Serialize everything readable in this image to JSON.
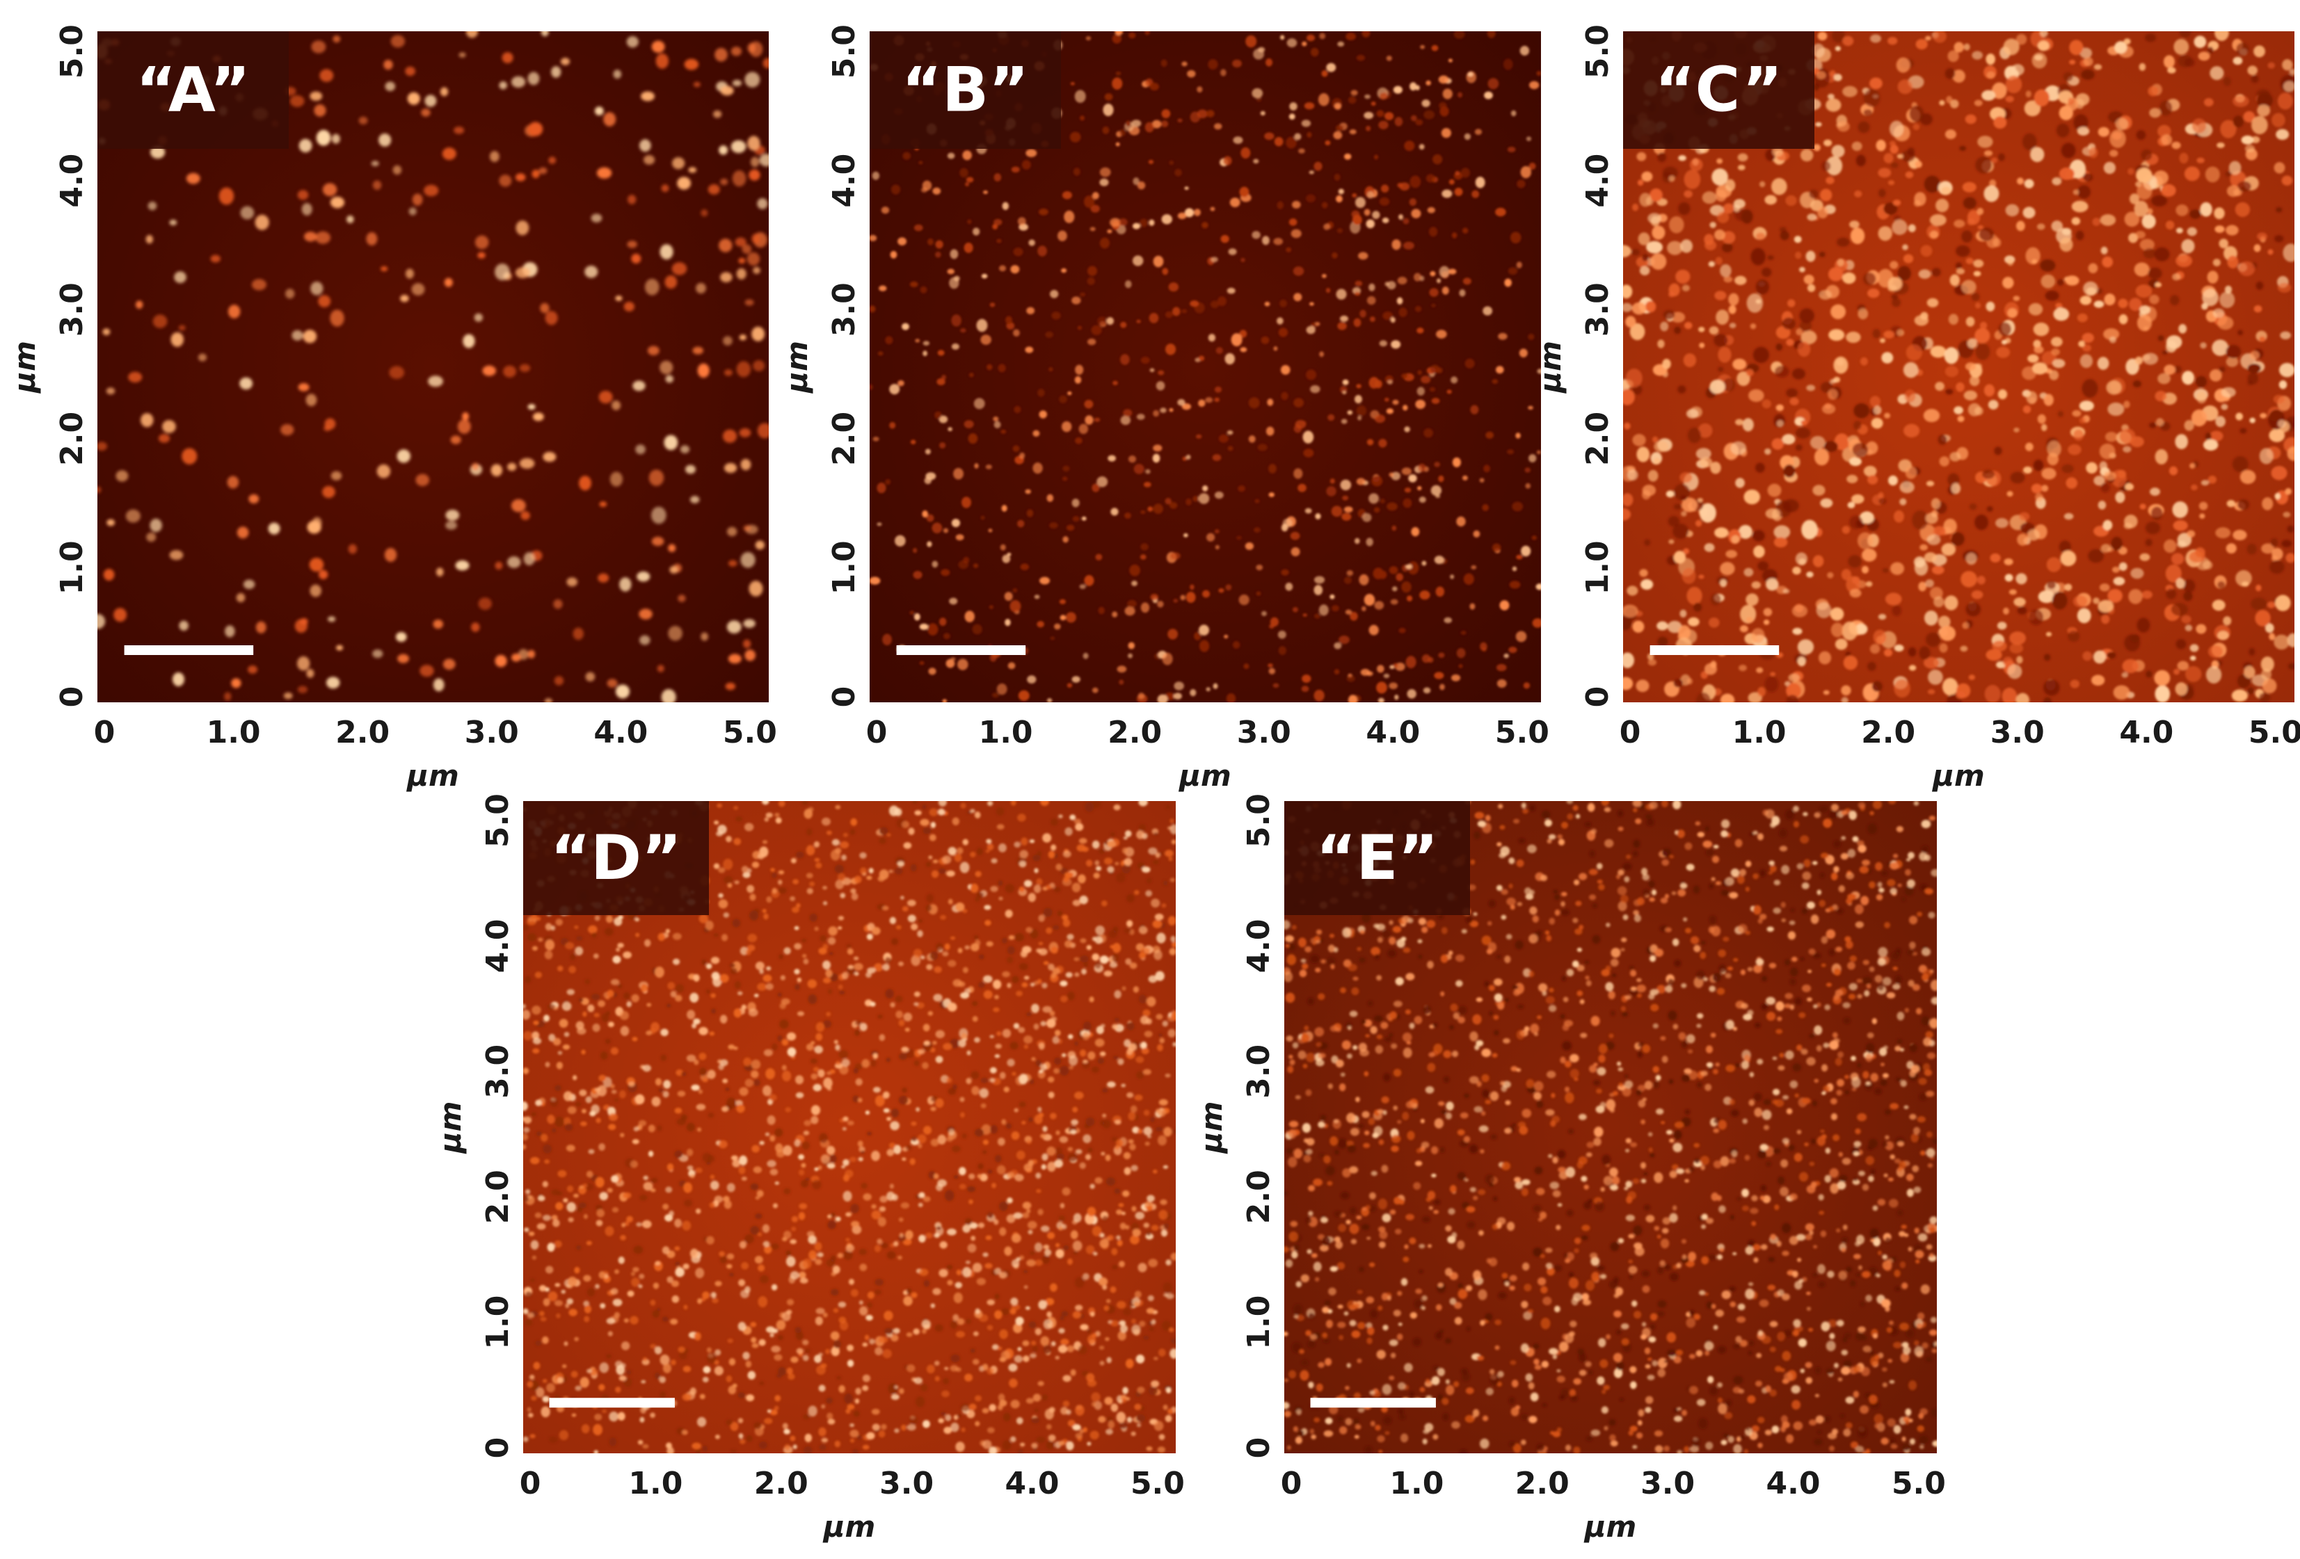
{
  "panels": [
    {
      "label": "“A”",
      "texture": "dots",
      "image_description": "AFM height map with sparse bright round nanodots on a dark red background",
      "seed": 11
    },
    {
      "label": "“B”",
      "texture": "small-dots",
      "image_description": "AFM height map with dense small bright grains on a dark red background",
      "seed": 23
    },
    {
      "label": "“C”",
      "texture": "clusters",
      "image_description": "AFM height map with bright orange clustered domains",
      "seed": 37
    },
    {
      "label": "“D”",
      "texture": "fine",
      "image_description": "AFM height map with fine uniform orange granular texture",
      "seed": 41
    },
    {
      "label": "“E”",
      "texture": "fine-dark",
      "image_description": "AFM height map with fine granular texture, slightly darker",
      "seed": 53
    }
  ],
  "axes": {
    "x_ticks": [
      "0",
      "1.0",
      "2.0",
      "3.0",
      "4.0",
      "5.0"
    ],
    "y_ticks": [
      "0",
      "1.0",
      "2.0",
      "3.0",
      "4.0",
      "5.0"
    ],
    "x_title": "μm",
    "y_title": "μm",
    "range": [
      0,
      5.2
    ]
  },
  "scale_bar": {
    "length_um": 1.0
  },
  "colors": {
    "background": "#5a0f00",
    "mid": "#b8360a",
    "bright": "#ffe6c0",
    "label_box": "#3a0c04"
  }
}
